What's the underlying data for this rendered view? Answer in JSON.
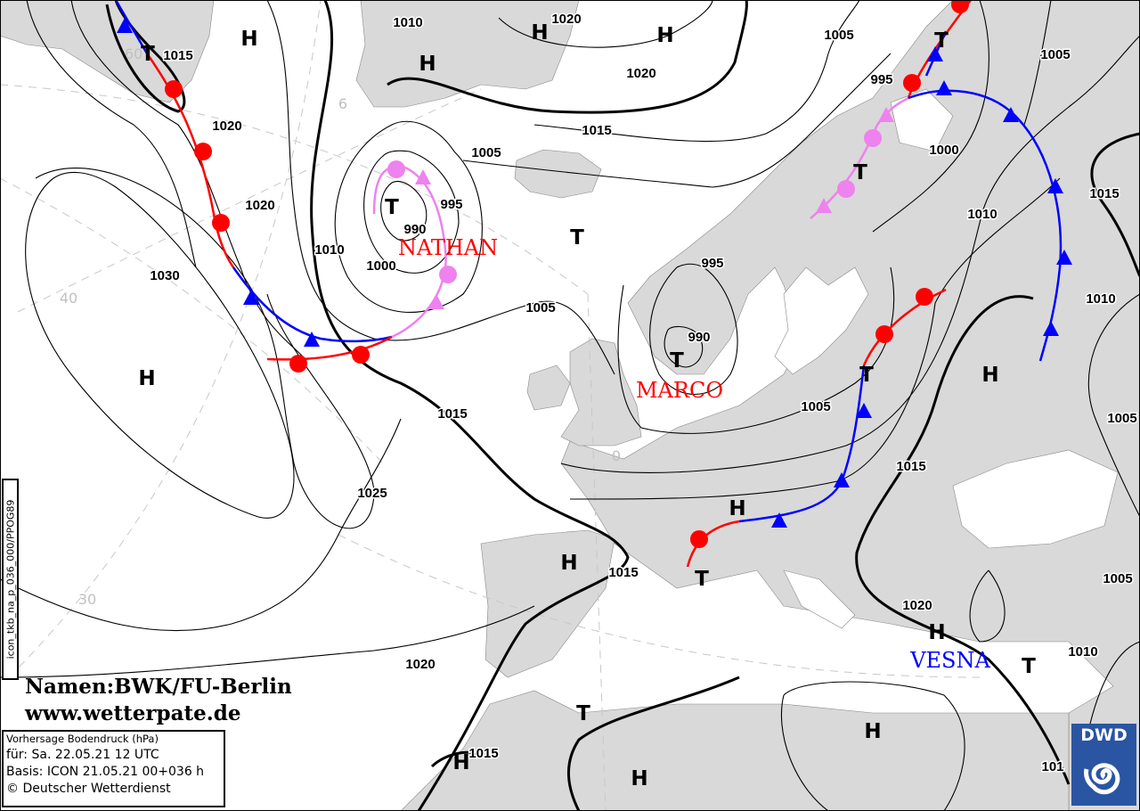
{
  "map": {
    "colors": {
      "land": "#d9d9d9",
      "sea": "#ffffff",
      "isobar": "#000000",
      "cold_front": "#0000ff",
      "warm_front": "#ff0000",
      "occlusion": "#ee82ee",
      "grid": "#c8c8c8"
    },
    "pressure_labels": [
      "1010",
      "1020",
      "1015",
      "1020",
      "1020",
      "1030",
      "1025",
      "1020",
      "1015",
      "1015",
      "1015",
      "1010",
      "1000",
      "990",
      "995",
      "1005",
      "1015",
      "1020",
      "1005",
      "995",
      "1000",
      "1005",
      "1015",
      "1010",
      "995",
      "990",
      "1005",
      "1005",
      "1015",
      "1010",
      "1005",
      "1005",
      "1020",
      "1010",
      "101"
    ],
    "centers": [
      "T",
      "H",
      "H",
      "H",
      "H",
      "T",
      "T",
      "T",
      "T",
      "T",
      "T",
      "H",
      "H",
      "T",
      "H",
      "H",
      "H",
      "T",
      "T",
      "H",
      "H",
      "H"
    ],
    "grid_labels": [
      "60",
      "6",
      "40",
      "30",
      "0"
    ],
    "names": [
      {
        "text": "NATHAN",
        "color": "#ff0000"
      },
      {
        "text": "MARCO",
        "color": "#ff0000"
      },
      {
        "text": "VESNA",
        "color": "#0000ff"
      }
    ]
  },
  "credit": {
    "line1": "Namen:BWK/FU-Berlin",
    "line2": "www.wetterpate.de"
  },
  "product_code": "icon_tkb_na_p_036_000/PPOG89",
  "info": {
    "title": "Vorhersage Bodendruck (hPa)",
    "valid": "für:  Sa. 22.05.21  12 UTC",
    "basis": "Basis: ICON  21.05.21 00+036 h",
    "copyright": "© Deutscher Wetterdienst"
  },
  "logo": {
    "text": "DWD"
  }
}
